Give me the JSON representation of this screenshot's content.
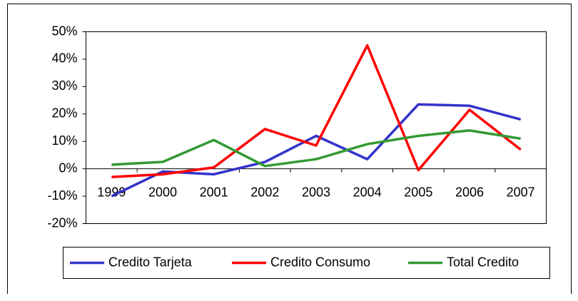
{
  "chart_data": {
    "type": "line",
    "categories": [
      "1999",
      "2000",
      "2001",
      "2002",
      "2003",
      "2004",
      "2005",
      "2006",
      "2007"
    ],
    "series": [
      {
        "name": "Credito Tarjeta",
        "color": "#3333cc",
        "values": [
          -10,
          -1,
          -2,
          2.5,
          12,
          3.5,
          23.5,
          23,
          18
        ]
      },
      {
        "name": "Credito Consumo",
        "color": "#ff0000",
        "values": [
          -3,
          -2,
          0.5,
          14.5,
          8.5,
          45,
          -0.5,
          21.5,
          7
        ]
      },
      {
        "name": "Total Credito",
        "color": "#339933",
        "values": [
          1.5,
          2.5,
          10.5,
          1,
          3.5,
          9,
          12,
          14,
          11
        ]
      }
    ],
    "ylim": [
      -20,
      50
    ],
    "yticks": [
      {
        "value": -20,
        "label": "-20%"
      },
      {
        "value": -10,
        "label": "-10%"
      },
      {
        "value": 0,
        "label": "0%"
      },
      {
        "value": 10,
        "label": "10%"
      },
      {
        "value": 20,
        "label": "20%"
      },
      {
        "value": 30,
        "label": "30%"
      },
      {
        "value": 40,
        "label": "40%"
      },
      {
        "value": 50,
        "label": "50%"
      }
    ],
    "grid": false,
    "legend": "bottom"
  }
}
